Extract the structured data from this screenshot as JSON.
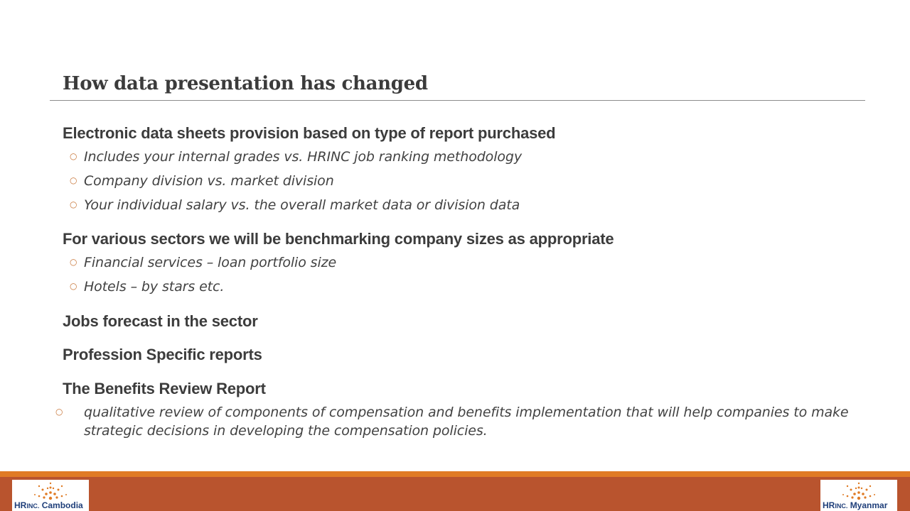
{
  "slide": {
    "title": "How data presentation  has changed"
  },
  "sections": [
    {
      "heading": "Electronic data sheets provision based on type of report purchased",
      "bullets": [
        "Includes your internal grades vs. HRINC job ranking methodology",
        "Company division vs. market division",
        "Your individual salary vs. the overall market data or division data"
      ]
    },
    {
      "heading": "For various sectors we will be benchmarking company sizes as appropriate",
      "bullets": [
        "Financial services – loan portfolio size",
        "Hotels – by stars etc."
      ]
    },
    {
      "heading": "Jobs forecast in the sector"
    },
    {
      "heading": "Profession Specific reports"
    },
    {
      "heading": "The Benefits Review Report",
      "bullets": [
        "qualitative review of components of compensation and benefits implementation that will help companies to make strategic decisions in developing the compensation policies."
      ]
    }
  ],
  "footer": {
    "logo_left": {
      "brand": "HR",
      "inc": "INC.",
      "country": "Cambodia"
    },
    "logo_right": {
      "brand": "HR",
      "inc": "INC.",
      "country": "Myanmar"
    }
  },
  "colors": {
    "accent_strip": "#e07b25",
    "footer_band": "#b9542e",
    "logo_text": "#1f3f7a"
  }
}
